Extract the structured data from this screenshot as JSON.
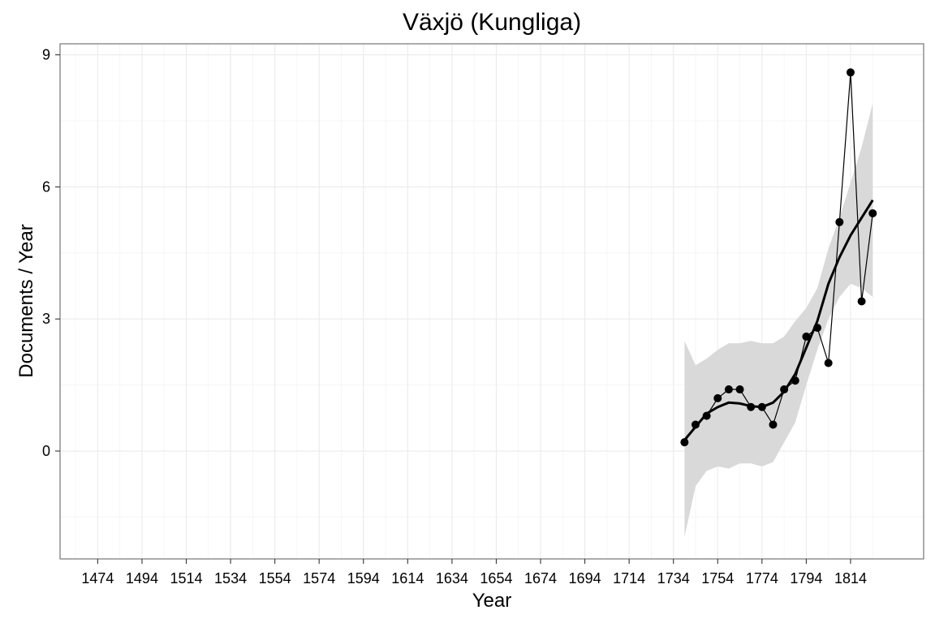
{
  "chart_data": {
    "type": "line",
    "title": "Växjö (Kungliga)",
    "xlabel": "Year",
    "ylabel": "Documents / Year",
    "xlim": [
      1457,
      1847
    ],
    "ylim": [
      -2.45,
      9.25
    ],
    "x_ticks": [
      1474,
      1494,
      1514,
      1534,
      1554,
      1574,
      1594,
      1614,
      1634,
      1654,
      1674,
      1694,
      1714,
      1734,
      1754,
      1774,
      1794,
      1814
    ],
    "y_ticks": [
      0,
      3,
      6,
      9
    ],
    "grid": true,
    "series": [
      {
        "kind": "points-line",
        "x": [
          1739,
          1744,
          1749,
          1754,
          1759,
          1764,
          1769,
          1774,
          1779,
          1784,
          1789,
          1794,
          1799,
          1804,
          1809,
          1814,
          1819,
          1824
        ],
        "y": [
          0.2,
          0.6,
          0.8,
          1.2,
          1.4,
          1.4,
          1.0,
          1.0,
          0.6,
          1.4,
          1.6,
          2.6,
          2.8,
          2.0,
          5.2,
          8.6,
          3.4,
          5.4
        ]
      },
      {
        "kind": "smooth",
        "x": [
          1739,
          1744,
          1749,
          1754,
          1759,
          1764,
          1769,
          1774,
          1779,
          1784,
          1789,
          1794,
          1799,
          1804,
          1809,
          1814,
          1819,
          1824
        ],
        "y": [
          0.25,
          0.55,
          0.85,
          1.0,
          1.1,
          1.08,
          1.02,
          1.0,
          1.1,
          1.35,
          1.75,
          2.35,
          2.95,
          3.8,
          4.4,
          4.9,
          5.3,
          5.7
        ],
        "lower": [
          -1.95,
          -0.8,
          -0.45,
          -0.35,
          -0.4,
          -0.28,
          -0.28,
          -0.35,
          -0.25,
          0.2,
          0.65,
          1.5,
          2.3,
          3.0,
          3.5,
          3.8,
          3.7,
          3.5
        ],
        "upper": [
          2.5,
          1.95,
          2.1,
          2.3,
          2.45,
          2.45,
          2.5,
          2.45,
          2.45,
          2.6,
          2.95,
          3.25,
          3.7,
          4.6,
          5.3,
          6.1,
          6.9,
          7.9
        ]
      }
    ]
  }
}
